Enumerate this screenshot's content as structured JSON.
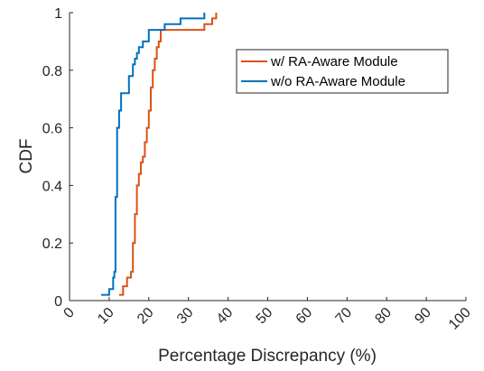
{
  "chart_data": {
    "type": "line",
    "title": "",
    "xlabel": "Percentage Discrepancy (%)",
    "ylabel": "CDF",
    "xlim": [
      0,
      100
    ],
    "ylim": [
      0,
      1
    ],
    "xticks": [
      "0",
      "10",
      "20",
      "30",
      "40",
      "50",
      "60",
      "70",
      "80",
      "90",
      "100"
    ],
    "yticks": [
      "0",
      "0.2",
      "0.4",
      "0.6",
      "0.8",
      "1"
    ],
    "xtick_rotation": "rotated ~45 degrees",
    "grid": false,
    "legend_placement": "top-right",
    "series": [
      {
        "name": "w/ RA-Aware Module",
        "color": "#D95319",
        "step": true,
        "x": [
          12.5,
          13.5,
          14.5,
          15.5,
          16,
          16.5,
          17,
          17.5,
          18,
          18.5,
          19,
          19.5,
          20,
          20.5,
          21,
          21.5,
          22,
          22.5,
          23,
          28,
          34,
          36,
          37
        ],
        "y": [
          0.02,
          0.05,
          0.08,
          0.1,
          0.2,
          0.3,
          0.4,
          0.44,
          0.48,
          0.5,
          0.55,
          0.6,
          0.66,
          0.74,
          0.8,
          0.84,
          0.88,
          0.9,
          0.94,
          0.94,
          0.96,
          0.98,
          1.0
        ]
      },
      {
        "name": "w/o RA-Aware Module",
        "color": "#0072BD",
        "step": true,
        "x": [
          8,
          9,
          10,
          11,
          11.3,
          11.6,
          12,
          12.5,
          13,
          14,
          15,
          16,
          16.5,
          17,
          17.5,
          18.5,
          20,
          22,
          24,
          26,
          28,
          34
        ],
        "y": [
          0.02,
          0.02,
          0.04,
          0.08,
          0.1,
          0.36,
          0.6,
          0.66,
          0.72,
          0.72,
          0.78,
          0.82,
          0.84,
          0.86,
          0.88,
          0.9,
          0.94,
          0.94,
          0.96,
          0.96,
          0.98,
          1.0
        ]
      }
    ]
  }
}
